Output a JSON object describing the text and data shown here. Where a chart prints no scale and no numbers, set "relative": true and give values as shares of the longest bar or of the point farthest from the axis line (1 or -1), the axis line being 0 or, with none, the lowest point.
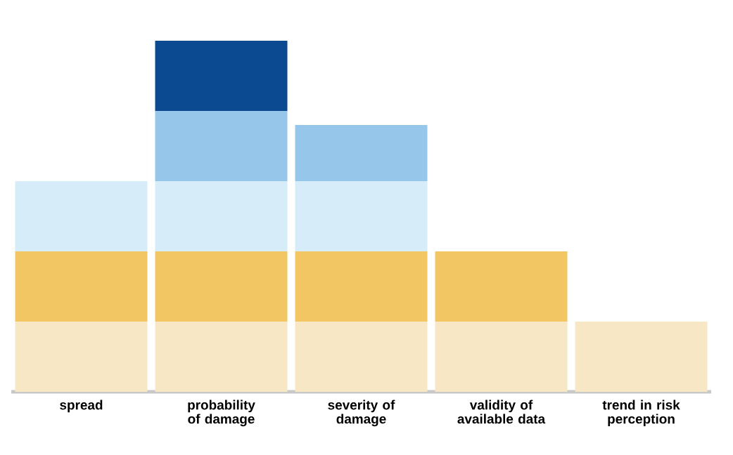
{
  "chart_data": {
    "type": "bar",
    "stacked": true,
    "relative": true,
    "categories": [
      "spread",
      "probability of damage",
      "severity of damage",
      "validity of available data",
      "trend in risk perception"
    ],
    "series": [
      {
        "color": "#f8e7c4",
        "values": [
          0.2,
          0.2,
          0.2,
          0.2,
          0.2
        ]
      },
      {
        "color": "#f2c763",
        "values": [
          0.2,
          0.2,
          0.2,
          0.2,
          0
        ]
      },
      {
        "color": "#d6ecf8",
        "values": [
          0.2,
          0.2,
          0.2,
          0,
          0
        ]
      },
      {
        "color": "#96c6e9",
        "values": [
          0,
          0.2,
          0.16,
          0,
          0
        ]
      },
      {
        "color": "#0b4a90",
        "values": [
          0,
          0.2,
          0,
          0,
          0
        ]
      }
    ]
  }
}
